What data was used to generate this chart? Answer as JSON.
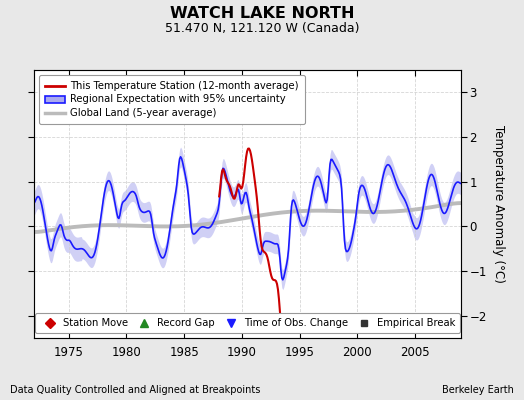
{
  "title": "WATCH LAKE NORTH",
  "subtitle": "51.470 N, 121.120 W (Canada)",
  "ylabel": "Temperature Anomaly (°C)",
  "footer_left": "Data Quality Controlled and Aligned at Breakpoints",
  "footer_right": "Berkeley Earth",
  "xlim": [
    1972.0,
    2009.0
  ],
  "ylim": [
    -2.5,
    3.5
  ],
  "yticks": [
    -2,
    -1,
    0,
    1,
    2,
    3
  ],
  "xticks": [
    1975,
    1980,
    1985,
    1990,
    1995,
    2000,
    2005
  ],
  "bg_color": "#e8e8e8",
  "plot_bg_color": "#ffffff",
  "blue_line_color": "#1a1aff",
  "blue_fill_color": "#aaaaee",
  "red_line_color": "#cc0000",
  "gray_line_color": "#bbbbbb",
  "legend1": [
    {
      "label": "This Temperature Station (12-month average)",
      "color": "#cc0000",
      "lw": 2.0
    },
    {
      "label": "Regional Expectation with 95% uncertainty",
      "color": "#1a1aff",
      "fill": "#aaaaee"
    },
    {
      "label": "Global Land (5-year average)",
      "color": "#bbbbbb",
      "lw": 2.5
    }
  ],
  "legend2": [
    {
      "label": "Station Move",
      "marker": "D",
      "color": "#cc0000"
    },
    {
      "label": "Record Gap",
      "marker": "^",
      "color": "#228822"
    },
    {
      "label": "Time of Obs. Change",
      "marker": "v",
      "color": "#1a1aff"
    },
    {
      "label": "Empirical Break",
      "marker": "s",
      "color": "#333333"
    }
  ]
}
